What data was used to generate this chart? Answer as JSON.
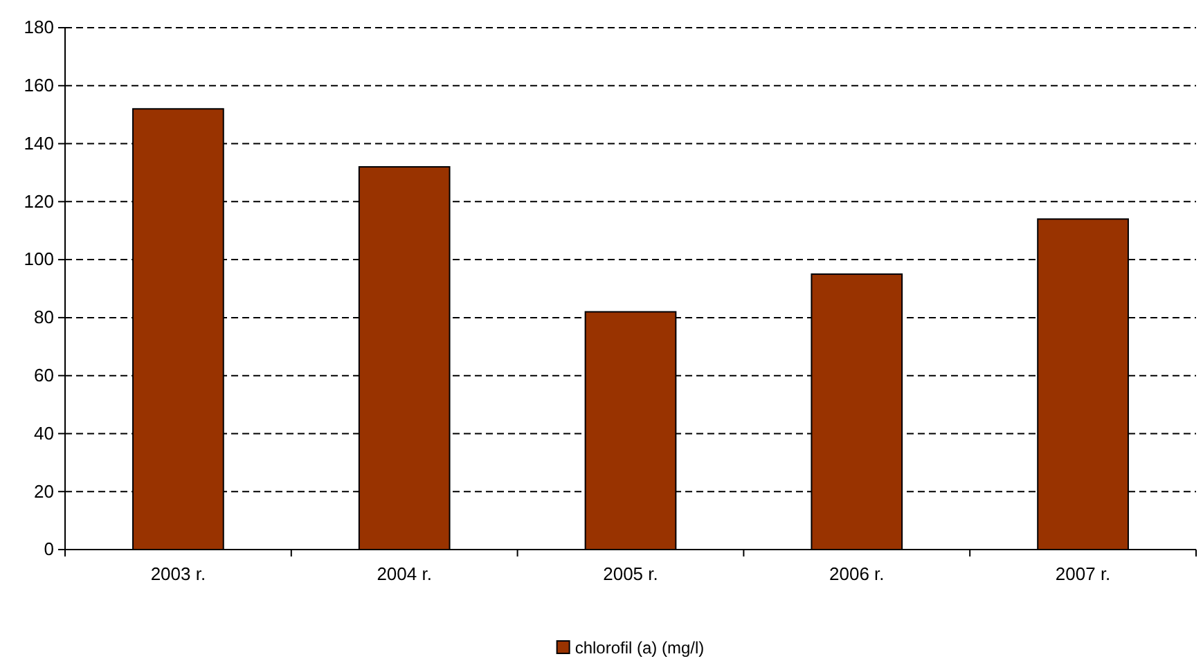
{
  "chart_data": {
    "type": "bar",
    "categories": [
      "2003 r.",
      "2004 r.",
      "2005 r.",
      "2006 r.",
      "2007 r."
    ],
    "series": [
      {
        "name": "chlorofil (a) (mg/l)",
        "color": "#993300",
        "values": [
          152,
          132,
          82,
          95,
          114
        ]
      }
    ],
    "ylim": [
      0,
      180
    ],
    "yticks": [
      0,
      20,
      40,
      60,
      80,
      100,
      120,
      140,
      160,
      180
    ],
    "grid": "y",
    "legend": "bottom"
  }
}
